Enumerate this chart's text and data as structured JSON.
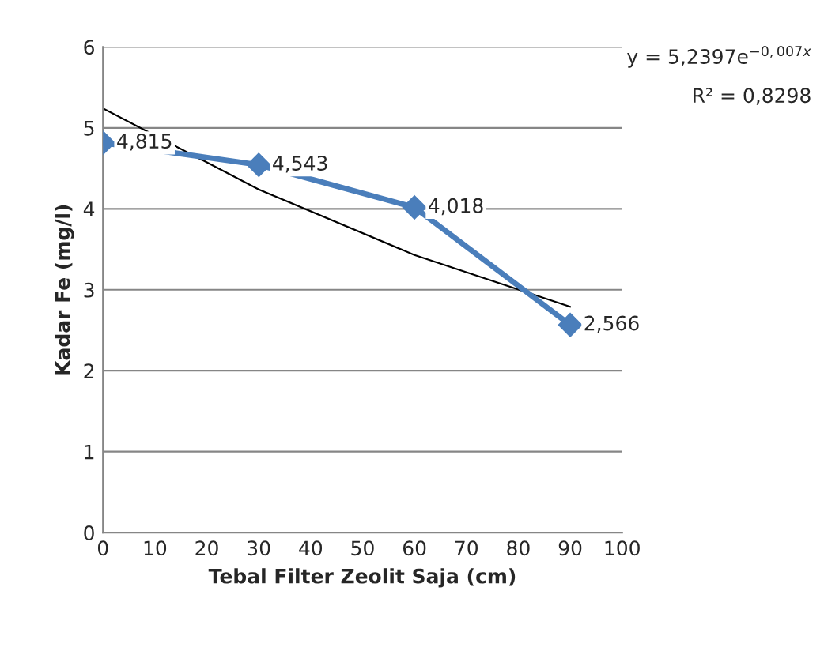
{
  "chart_data": {
    "type": "line",
    "xlabel": "Tebal Filter Zeolit Saja (cm)",
    "ylabel": "Kadar Fe (mg/l)",
    "xlim": [
      0,
      100
    ],
    "xticks": [
      0,
      10,
      20,
      30,
      40,
      50,
      60,
      70,
      80,
      90,
      100
    ],
    "ylim": [
      0,
      6
    ],
    "yticks": [
      0,
      1,
      2,
      3,
      4,
      5,
      6
    ],
    "grid": "y",
    "legend": false,
    "series": [
      {
        "x": [
          0,
          30,
          60,
          90
        ],
        "values": [
          4.815,
          4.543,
          4.018,
          2.566
        ],
        "color": "#4a7ebb",
        "marker": "diamond",
        "line_style": "solid",
        "value_labels": [
          "4,815",
          "4,543",
          "4,018",
          "2,566"
        ]
      },
      {
        "type": "line",
        "x": [
          0,
          30,
          60,
          90
        ],
        "values": [
          5.24,
          4.24,
          3.43,
          2.79
        ],
        "color": "#000000",
        "marker": "none",
        "line_style": "solid"
      }
    ],
    "annotations": [
      "y = 5,2397e$^{−0,007x}$",
      "R² = 0,8298"
    ]
  }
}
